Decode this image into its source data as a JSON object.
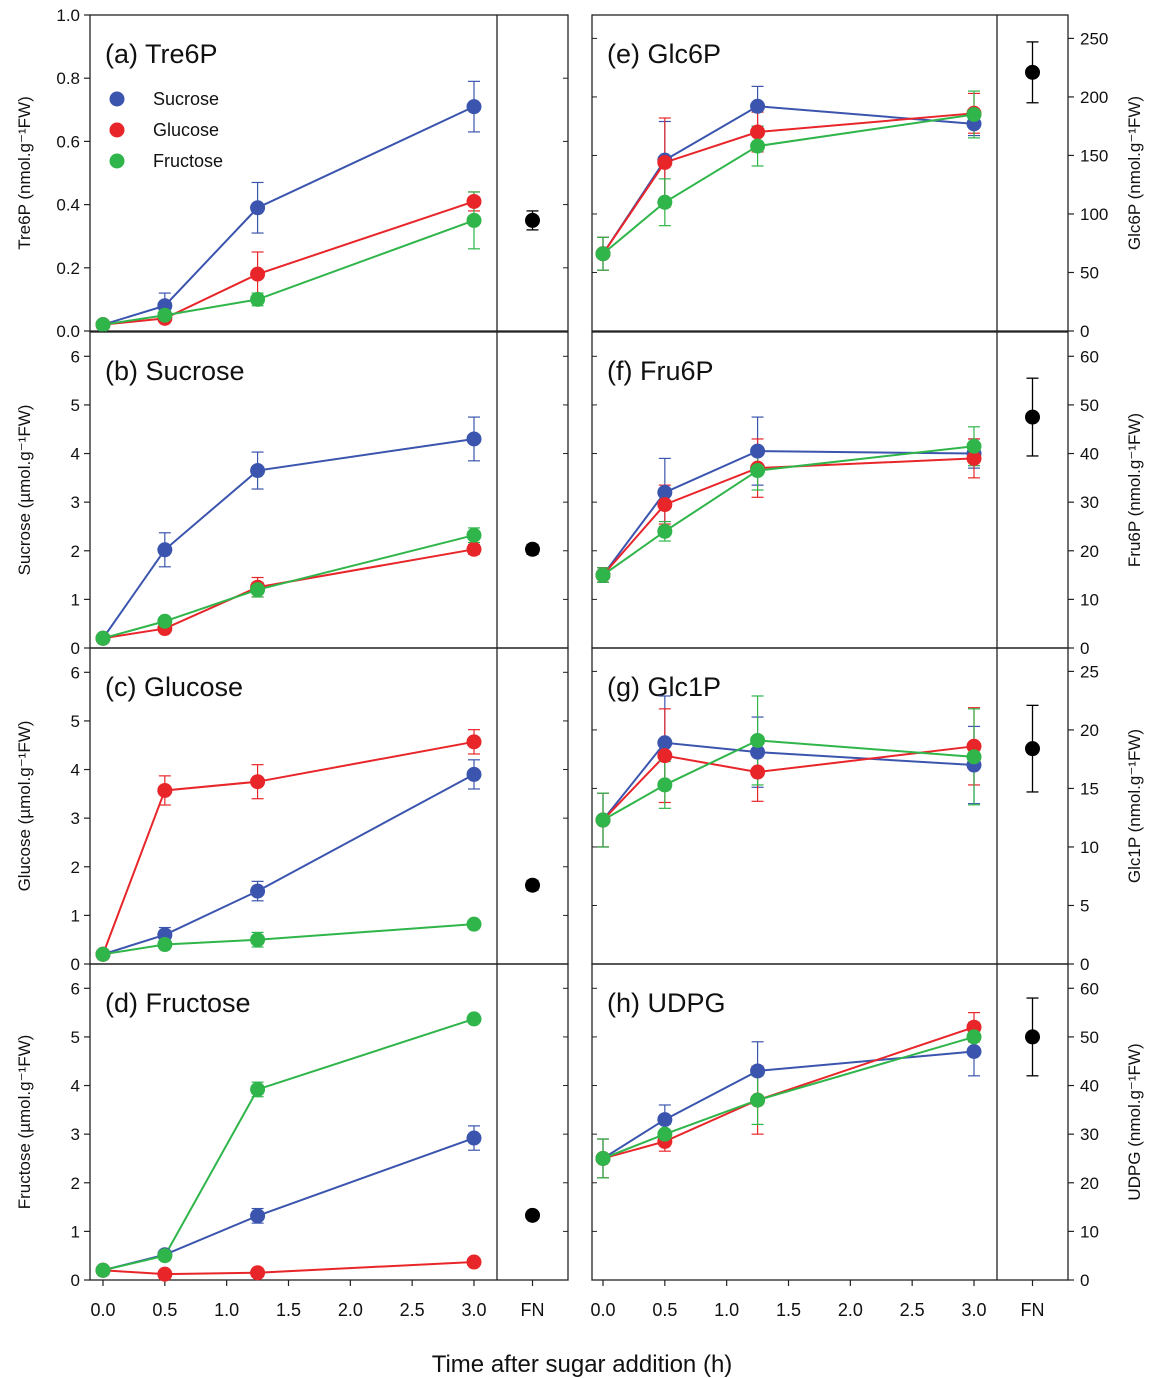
{
  "figure": {
    "xlabel": "Time after sugar addition (h)",
    "x_ticks": [
      "0.0",
      "0.5",
      "1.0",
      "1.5",
      "2.0",
      "2.5",
      "3.0"
    ],
    "fn_label": "FN",
    "legend": [
      {
        "name": "Sucrose",
        "color": "#3b55ae"
      },
      {
        "name": "Glucose",
        "color": "#e8262a"
      },
      {
        "name": "Fructose",
        "color": "#2fb54a"
      }
    ]
  },
  "colors": {
    "sucrose": "#3b55ae",
    "glucose": "#e8262a",
    "fructose": "#2fb54a",
    "fn": "#000000"
  },
  "chart_data": [
    {
      "id": "a",
      "type": "line",
      "title": "(a) Tre6P",
      "ylabel": "Tre6P (nmol.g⁻¹FW)",
      "ylim": [
        0,
        1.0
      ],
      "yticks": [
        "0.0",
        "0.2",
        "0.4",
        "0.6",
        "0.8",
        "1.0"
      ],
      "x": [
        0,
        0.5,
        1.25,
        3.0
      ],
      "series": [
        {
          "name": "Sucrose",
          "values": [
            0.02,
            0.08,
            0.39,
            0.71
          ],
          "err": [
            0.01,
            0.04,
            0.08,
            0.08
          ]
        },
        {
          "name": "Glucose",
          "values": [
            0.02,
            0.04,
            0.18,
            0.41
          ],
          "err": [
            0.01,
            0.01,
            0.07,
            0.03
          ]
        },
        {
          "name": "Fructose",
          "values": [
            0.02,
            0.05,
            0.1,
            0.35
          ],
          "err": [
            0.01,
            0.01,
            0.02,
            0.09
          ]
        }
      ],
      "fn": {
        "value": 0.35,
        "err": 0.03
      }
    },
    {
      "id": "b",
      "type": "line",
      "title": "(b) Sucrose",
      "ylabel": "Sucrose (µmol.g⁻¹FW)",
      "ylim": [
        0,
        6.5
      ],
      "yticks": [
        "0",
        "1",
        "2",
        "3",
        "4",
        "5",
        "6"
      ],
      "x": [
        0,
        0.5,
        1.25,
        3.0
      ],
      "series": [
        {
          "name": "Sucrose",
          "values": [
            0.2,
            2.02,
            3.65,
            4.3
          ],
          "err": [
            0.05,
            0.35,
            0.38,
            0.45
          ]
        },
        {
          "name": "Glucose",
          "values": [
            0.2,
            0.4,
            1.25,
            2.03
          ],
          "err": [
            0.05,
            0.05,
            0.2,
            0.1
          ]
        },
        {
          "name": "Fructose",
          "values": [
            0.2,
            0.55,
            1.2,
            2.32
          ],
          "err": [
            0.05,
            0.05,
            0.15,
            0.15
          ]
        }
      ],
      "fn": {
        "value": 2.03,
        "err": 0.1
      }
    },
    {
      "id": "c",
      "type": "line",
      "title": "(c) Glucose",
      "ylabel": "Glucose (µmol.g⁻¹FW)",
      "ylim": [
        0,
        6.5
      ],
      "yticks": [
        "0",
        "1",
        "2",
        "3",
        "4",
        "5",
        "6"
      ],
      "x": [
        0,
        0.5,
        1.25,
        3.0
      ],
      "series": [
        {
          "name": "Sucrose",
          "values": [
            0.2,
            0.6,
            1.5,
            3.9
          ],
          "err": [
            0.05,
            0.15,
            0.2,
            0.3
          ]
        },
        {
          "name": "Glucose",
          "values": [
            0.2,
            3.57,
            3.75,
            4.57
          ],
          "err": [
            0.05,
            0.3,
            0.35,
            0.25
          ]
        },
        {
          "name": "Fructose",
          "values": [
            0.2,
            0.4,
            0.5,
            0.82
          ],
          "err": [
            0.05,
            0.05,
            0.15,
            0.05
          ]
        }
      ],
      "fn": {
        "value": 1.62,
        "err": 0.1
      }
    },
    {
      "id": "d",
      "type": "line",
      "title": "(d) Fructose",
      "ylabel": "Fructose (µmol.g⁻¹FW)",
      "ylim": [
        0,
        6.5
      ],
      "yticks": [
        "0",
        "1",
        "2",
        "3",
        "4",
        "5",
        "6"
      ],
      "x": [
        0,
        0.5,
        1.25,
        3.0
      ],
      "series": [
        {
          "name": "Sucrose",
          "values": [
            0.2,
            0.52,
            1.32,
            2.92
          ],
          "err": [
            0.05,
            0.05,
            0.15,
            0.25
          ]
        },
        {
          "name": "Glucose",
          "values": [
            0.2,
            0.12,
            0.15,
            0.37
          ],
          "err": [
            0.05,
            0.03,
            0.03,
            0.05
          ]
        },
        {
          "name": "Fructose",
          "values": [
            0.2,
            0.5,
            3.92,
            5.37
          ],
          "err": [
            0.05,
            0.05,
            0.15,
            0.05
          ]
        }
      ],
      "fn": {
        "value": 1.33,
        "err": 0.05
      }
    },
    {
      "id": "e",
      "type": "line",
      "title": "(e) Glc6P",
      "ylabel": "Glc6P (nmol.g⁻¹FW)",
      "ylim": [
        0,
        270
      ],
      "yticks": [
        "0",
        "50",
        "100",
        "150",
        "200",
        "250"
      ],
      "x": [
        0,
        0.5,
        1.25,
        3.0
      ],
      "series": [
        {
          "name": "Sucrose",
          "values": [
            66,
            146,
            192,
            177
          ],
          "err": [
            14,
            33,
            17,
            10
          ]
        },
        {
          "name": "Glucose",
          "values": [
            66,
            144,
            170,
            186
          ],
          "err": [
            14,
            38,
            17,
            17
          ]
        },
        {
          "name": "Fructose",
          "values": [
            66,
            110,
            158,
            185
          ],
          "err": [
            14,
            20,
            17,
            20
          ]
        }
      ],
      "fn": {
        "value": 221,
        "err": 26
      }
    },
    {
      "id": "f",
      "type": "line",
      "title": "(f) Fru6P",
      "ylabel": "Fru6P (nmol.g⁻¹FW)",
      "ylim": [
        0,
        65
      ],
      "yticks": [
        "0",
        "10",
        "20",
        "30",
        "40",
        "50",
        "60"
      ],
      "x": [
        0,
        0.5,
        1.25,
        3.0
      ],
      "series": [
        {
          "name": "Sucrose",
          "values": [
            15,
            32,
            40.5,
            40
          ],
          "err": [
            1.5,
            7,
            7,
            3
          ]
        },
        {
          "name": "Glucose",
          "values": [
            15,
            29.5,
            37,
            39
          ],
          "err": [
            1.5,
            4,
            6,
            4
          ]
        },
        {
          "name": "Fructose",
          "values": [
            15,
            24,
            36.5,
            41.5
          ],
          "err": [
            1.5,
            2,
            4,
            4
          ]
        }
      ],
      "fn": {
        "value": 47.5,
        "err": 8
      }
    },
    {
      "id": "g",
      "type": "line",
      "title": "(g) Glc1P",
      "ylabel": "Glc1P (nmol.g⁻¹FW)",
      "ylim": [
        0,
        27
      ],
      "yticks": [
        "0",
        "5",
        "10",
        "15",
        "20",
        "25"
      ],
      "x": [
        0,
        0.5,
        1.25,
        3.0
      ],
      "series": [
        {
          "name": "Sucrose",
          "values": [
            12.3,
            18.9,
            18.1,
            17.0
          ],
          "err": [
            2.3,
            4.0,
            3.0,
            3.3
          ]
        },
        {
          "name": "Glucose",
          "values": [
            12.3,
            17.8,
            16.4,
            18.6
          ],
          "err": [
            2.3,
            4.0,
            2.5,
            3.3
          ]
        },
        {
          "name": "Fructose",
          "values": [
            12.3,
            15.3,
            19.1,
            17.7
          ],
          "err": [
            2.3,
            2.0,
            3.8,
            4.1
          ]
        }
      ],
      "fn": {
        "value": 18.4,
        "err": 3.7
      }
    },
    {
      "id": "h",
      "type": "line",
      "title": "(h) UDPG",
      "ylabel": "UDPG (nmol.g⁻¹FW)",
      "ylim": [
        0,
        65
      ],
      "yticks": [
        "0",
        "10",
        "20",
        "30",
        "40",
        "50",
        "60"
      ],
      "x": [
        0,
        0.5,
        1.25,
        3.0
      ],
      "series": [
        {
          "name": "Sucrose",
          "values": [
            25,
            33,
            43,
            47
          ],
          "err": [
            4,
            3,
            6,
            5
          ]
        },
        {
          "name": "Glucose",
          "values": [
            25,
            28.5,
            37,
            52
          ],
          "err": [
            4,
            2,
            7,
            3
          ]
        },
        {
          "name": "Fructose",
          "values": [
            25,
            30,
            37,
            50
          ],
          "err": [
            4,
            2,
            5,
            3
          ]
        }
      ],
      "fn": {
        "value": 50,
        "err": 8
      }
    }
  ]
}
